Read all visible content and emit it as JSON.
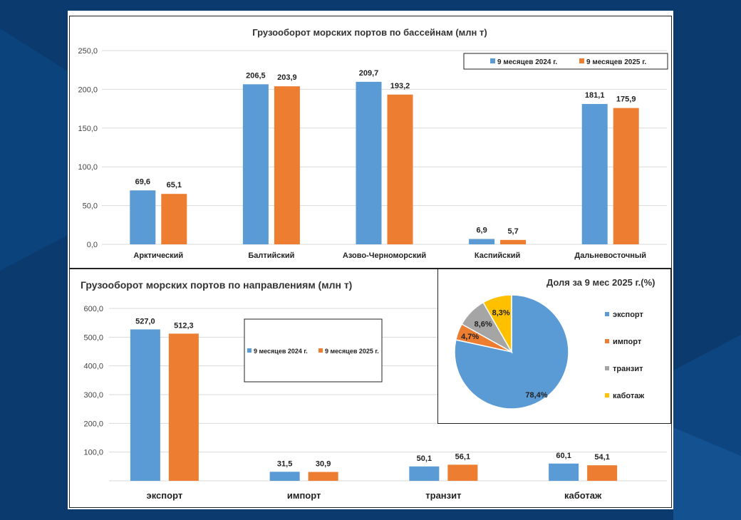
{
  "chart_data": [
    {
      "type": "bar",
      "title": "Грузооборот морских портов по бассейнам (млн т)",
      "categories": [
        "Арктический",
        "Балтийский",
        "Азово-Черноморский",
        "Каспийский",
        "Дальневосточный"
      ],
      "series": [
        {
          "name": "9 месяцев 2024 г.",
          "color": "#5b9bd5",
          "values": [
            69.6,
            206.5,
            209.7,
            6.9,
            181.1
          ],
          "labels": [
            "69,6",
            "206,5",
            "209,7",
            "6,9",
            "181,1"
          ]
        },
        {
          "name": "9 месяцев 2025 г.",
          "color": "#ed7d31",
          "values": [
            65.1,
            203.9,
            193.2,
            5.7,
            175.9
          ],
          "labels": [
            "65,1",
            "203,9",
            "193,2",
            "5,7",
            "175,9"
          ]
        }
      ],
      "ylim": [
        0,
        250
      ],
      "yticks": [
        "0,0",
        "50,0",
        "100,0",
        "150,0",
        "200,0",
        "250,0"
      ],
      "grid": true,
      "legend": "top-right"
    },
    {
      "type": "bar",
      "title": "Грузооборот морских портов по направлениям (млн т)",
      "categories": [
        "экспорт",
        "импорт",
        "транзит",
        "каботаж"
      ],
      "series": [
        {
          "name": "9 месяцев 2024 г.",
          "color": "#5b9bd5",
          "values": [
            527.0,
            31.5,
            50.1,
            60.1
          ],
          "labels": [
            "527,0",
            "31,5",
            "50,1",
            "60,1"
          ]
        },
        {
          "name": "9 месяцев 2025 г.",
          "color": "#ed7d31",
          "values": [
            512.3,
            30.9,
            56.1,
            54.1
          ],
          "labels": [
            "512,3",
            "30,9",
            "56,1",
            "54,1"
          ]
        }
      ],
      "ylim": [
        0,
        600
      ],
      "yticks": [
        "100,0",
        "200,0",
        "300,0",
        "400,0",
        "500,0",
        "600,0"
      ],
      "grid": true,
      "legend": "center"
    },
    {
      "type": "pie",
      "title": "Доля за 9 мес 2025 г.(%)",
      "categories": [
        "экспорт",
        "импорт",
        "транзит",
        "каботаж"
      ],
      "values": [
        78.4,
        4.7,
        8.6,
        8.3
      ],
      "labels": [
        "78,4%",
        "4,7%",
        "8,6%",
        "8,3%"
      ],
      "colors": [
        "#5b9bd5",
        "#ed7d31",
        "#a5a5a5",
        "#ffc000"
      ],
      "legend": "right"
    }
  ]
}
